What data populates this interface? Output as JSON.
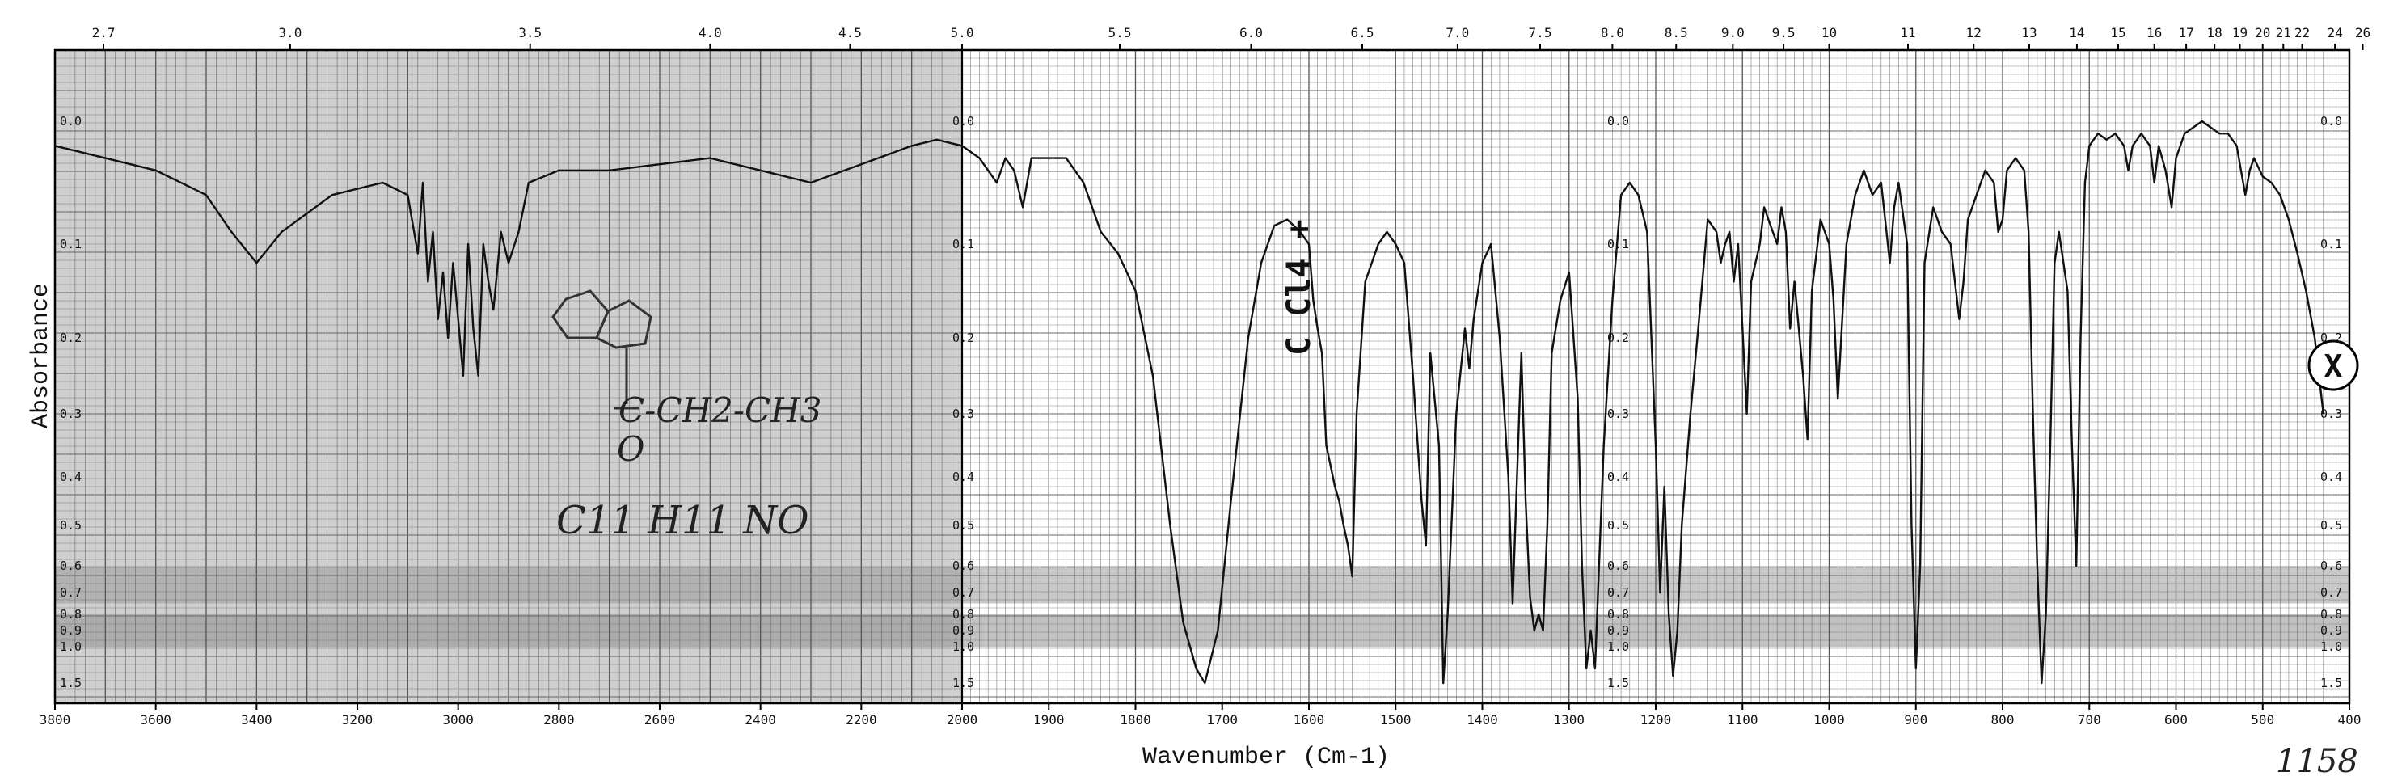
{
  "chart_data": {
    "type": "line",
    "title": "",
    "xlabel": "Wavenumber (Cm-1)",
    "ylabel": "Absorbance",
    "x_axis": "wavenumber",
    "x_axis_unit": "cm-1",
    "x_ticks_bottom": [
      "3800",
      "3600",
      "3400",
      "3200",
      "3000",
      "2800",
      "2600",
      "2400",
      "2200",
      "2000",
      "1900",
      "1800",
      "1700",
      "1600",
      "1500",
      "1400",
      "1300",
      "1200",
      "1100",
      "1000",
      "900",
      "800",
      "700",
      "600",
      "500",
      "400"
    ],
    "x_ticks_top_wavelength": [
      "2.7",
      "3.0",
      "3.5",
      "4.0",
      "4.5",
      "5.0",
      "5.5",
      "6.0",
      "6.5",
      "7.0",
      "7.5",
      "8.0",
      "8.5",
      "9.0",
      "9.5",
      "10",
      "11",
      "12",
      "13",
      "14",
      "15",
      "16",
      "17",
      "18",
      "19",
      "20",
      "21",
      "22",
      "24",
      "26"
    ],
    "y_ticks": [
      "0.0",
      "0.1",
      "0.2",
      "0.3",
      "0.4",
      "0.5",
      "0.6",
      "0.7",
      "0.8",
      "0.9",
      "1.0",
      "1.5"
    ],
    "ylim": [
      0.0,
      1.5
    ],
    "grid": true,
    "series": [
      {
        "points": [
          [
            3800,
            0.02
          ],
          [
            3700,
            0.03
          ],
          [
            3600,
            0.04
          ],
          [
            3500,
            0.06
          ],
          [
            3450,
            0.09
          ],
          [
            3400,
            0.12
          ],
          [
            3350,
            0.09
          ],
          [
            3250,
            0.06
          ],
          [
            3150,
            0.05
          ],
          [
            3100,
            0.06
          ],
          [
            3080,
            0.11
          ],
          [
            3070,
            0.05
          ],
          [
            3060,
            0.14
          ],
          [
            3050,
            0.09
          ],
          [
            3040,
            0.18
          ],
          [
            3030,
            0.13
          ],
          [
            3020,
            0.2
          ],
          [
            3010,
            0.12
          ],
          [
            3000,
            0.18
          ],
          [
            2990,
            0.25
          ],
          [
            2980,
            0.1
          ],
          [
            2970,
            0.19
          ],
          [
            2960,
            0.25
          ],
          [
            2950,
            0.1
          ],
          [
            2940,
            0.14
          ],
          [
            2930,
            0.17
          ],
          [
            2915,
            0.09
          ],
          [
            2900,
            0.12
          ],
          [
            2880,
            0.09
          ],
          [
            2860,
            0.05
          ],
          [
            2800,
            0.04
          ],
          [
            2700,
            0.04
          ],
          [
            2600,
            0.035
          ],
          [
            2500,
            0.03
          ],
          [
            2400,
            0.04
          ],
          [
            2300,
            0.05
          ],
          [
            2200,
            0.035
          ],
          [
            2100,
            0.02
          ],
          [
            2050,
            0.015
          ],
          [
            2000,
            0.02
          ],
          [
            1980,
            0.03
          ],
          [
            1960,
            0.05
          ],
          [
            1950,
            0.03
          ],
          [
            1940,
            0.04
          ],
          [
            1930,
            0.07
          ],
          [
            1920,
            0.03
          ],
          [
            1880,
            0.03
          ],
          [
            1860,
            0.05
          ],
          [
            1840,
            0.09
          ],
          [
            1820,
            0.11
          ],
          [
            1800,
            0.15
          ],
          [
            1780,
            0.25
          ],
          [
            1760,
            0.5
          ],
          [
            1745,
            0.85
          ],
          [
            1730,
            1.3
          ],
          [
            1720,
            1.5
          ],
          [
            1705,
            0.9
          ],
          [
            1690,
            0.45
          ],
          [
            1670,
            0.2
          ],
          [
            1655,
            0.12
          ],
          [
            1640,
            0.085
          ],
          [
            1625,
            0.08
          ],
          [
            1610,
            0.09
          ],
          [
            1600,
            0.1
          ],
          [
            1595,
            0.16
          ],
          [
            1590,
            0.19
          ],
          [
            1585,
            0.22
          ],
          [
            1580,
            0.35
          ],
          [
            1570,
            0.42
          ],
          [
            1565,
            0.45
          ],
          [
            1560,
            0.5
          ],
          [
            1555,
            0.55
          ],
          [
            1550,
            0.64
          ],
          [
            1545,
            0.3
          ],
          [
            1535,
            0.14
          ],
          [
            1520,
            0.1
          ],
          [
            1510,
            0.09
          ],
          [
            1500,
            0.1
          ],
          [
            1490,
            0.12
          ],
          [
            1480,
            0.25
          ],
          [
            1470,
            0.45
          ],
          [
            1465,
            0.55
          ],
          [
            1460,
            0.22
          ],
          [
            1450,
            0.35
          ],
          [
            1445,
            1.5
          ],
          [
            1440,
            0.8
          ],
          [
            1430,
            0.3
          ],
          [
            1420,
            0.19
          ],
          [
            1415,
            0.24
          ],
          [
            1410,
            0.18
          ],
          [
            1400,
            0.12
          ],
          [
            1390,
            0.1
          ],
          [
            1380,
            0.2
          ],
          [
            1370,
            0.4
          ],
          [
            1365,
            0.75
          ],
          [
            1360,
            0.4
          ],
          [
            1355,
            0.22
          ],
          [
            1350,
            0.45
          ],
          [
            1345,
            0.72
          ],
          [
            1340,
            0.9
          ],
          [
            1335,
            0.8
          ],
          [
            1330,
            0.9
          ],
          [
            1325,
            0.5
          ],
          [
            1320,
            0.22
          ],
          [
            1310,
            0.16
          ],
          [
            1300,
            0.13
          ],
          [
            1290,
            0.28
          ],
          [
            1285,
            0.6
          ],
          [
            1280,
            1.3
          ],
          [
            1275,
            0.9
          ],
          [
            1270,
            1.3
          ],
          [
            1260,
            0.35
          ],
          [
            1250,
            0.16
          ],
          [
            1240,
            0.06
          ],
          [
            1230,
            0.05
          ],
          [
            1220,
            0.06
          ],
          [
            1210,
            0.09
          ],
          [
            1200,
            0.35
          ],
          [
            1195,
            0.7
          ],
          [
            1190,
            0.42
          ],
          [
            1185,
            0.8
          ],
          [
            1180,
            1.4
          ],
          [
            1175,
            0.9
          ],
          [
            1170,
            0.5
          ],
          [
            1160,
            0.3
          ],
          [
            1150,
            0.18
          ],
          [
            1140,
            0.08
          ],
          [
            1130,
            0.09
          ],
          [
            1125,
            0.12
          ],
          [
            1120,
            0.1
          ],
          [
            1115,
            0.09
          ],
          [
            1110,
            0.14
          ],
          [
            1105,
            0.1
          ],
          [
            1100,
            0.19
          ],
          [
            1095,
            0.3
          ],
          [
            1090,
            0.14
          ],
          [
            1080,
            0.1
          ],
          [
            1075,
            0.07
          ],
          [
            1070,
            0.08
          ],
          [
            1060,
            0.1
          ],
          [
            1055,
            0.07
          ],
          [
            1050,
            0.09
          ],
          [
            1045,
            0.19
          ],
          [
            1040,
            0.14
          ],
          [
            1030,
            0.25
          ],
          [
            1025,
            0.34
          ],
          [
            1020,
            0.15
          ],
          [
            1010,
            0.08
          ],
          [
            1000,
            0.1
          ],
          [
            995,
            0.16
          ],
          [
            990,
            0.28
          ],
          [
            980,
            0.1
          ],
          [
            970,
            0.06
          ],
          [
            960,
            0.04
          ],
          [
            950,
            0.06
          ],
          [
            940,
            0.05
          ],
          [
            930,
            0.12
          ],
          [
            925,
            0.07
          ],
          [
            920,
            0.05
          ],
          [
            910,
            0.1
          ],
          [
            905,
            0.5
          ],
          [
            900,
            1.3
          ],
          [
            895,
            0.6
          ],
          [
            890,
            0.12
          ],
          [
            880,
            0.07
          ],
          [
            870,
            0.09
          ],
          [
            860,
            0.1
          ],
          [
            850,
            0.18
          ],
          [
            845,
            0.14
          ],
          [
            840,
            0.08
          ],
          [
            830,
            0.06
          ],
          [
            820,
            0.04
          ],
          [
            810,
            0.05
          ],
          [
            805,
            0.09
          ],
          [
            800,
            0.08
          ],
          [
            795,
            0.04
          ],
          [
            785,
            0.03
          ],
          [
            775,
            0.04
          ],
          [
            770,
            0.09
          ],
          [
            765,
            0.3
          ],
          [
            760,
            0.6
          ],
          [
            755,
            1.5
          ],
          [
            750,
            0.8
          ],
          [
            745,
            0.35
          ],
          [
            740,
            0.12
          ],
          [
            735,
            0.09
          ],
          [
            725,
            0.15
          ],
          [
            720,
            0.35
          ],
          [
            715,
            0.6
          ],
          [
            710,
            0.2
          ],
          [
            705,
            0.05
          ],
          [
            700,
            0.02
          ],
          [
            690,
            0.01
          ],
          [
            680,
            0.015
          ],
          [
            670,
            0.01
          ],
          [
            660,
            0.02
          ],
          [
            655,
            0.04
          ],
          [
            650,
            0.02
          ],
          [
            640,
            0.01
          ],
          [
            630,
            0.02
          ],
          [
            625,
            0.05
          ],
          [
            620,
            0.02
          ],
          [
            612,
            0.04
          ],
          [
            605,
            0.07
          ],
          [
            600,
            0.03
          ],
          [
            590,
            0.01
          ],
          [
            580,
            0.005
          ],
          [
            570,
            0.0
          ],
          [
            560,
            0.005
          ],
          [
            550,
            0.01
          ],
          [
            540,
            0.01
          ],
          [
            530,
            0.02
          ],
          [
            525,
            0.04
          ],
          [
            520,
            0.06
          ],
          [
            515,
            0.04
          ],
          [
            510,
            0.03
          ],
          [
            500,
            0.045
          ],
          [
            490,
            0.05
          ],
          [
            480,
            0.06
          ],
          [
            470,
            0.08
          ],
          [
            460,
            0.11
          ],
          [
            450,
            0.15
          ],
          [
            440,
            0.2
          ],
          [
            430,
            0.3
          ]
        ]
      }
    ]
  },
  "annotations": {
    "structure_substituent": "C-CH2-CH3",
    "structure_oxygen": "O",
    "formula": "C11 H11 NO",
    "solvent_note": "C Cl4 +",
    "stamp": "X",
    "corner_note": "1158"
  }
}
